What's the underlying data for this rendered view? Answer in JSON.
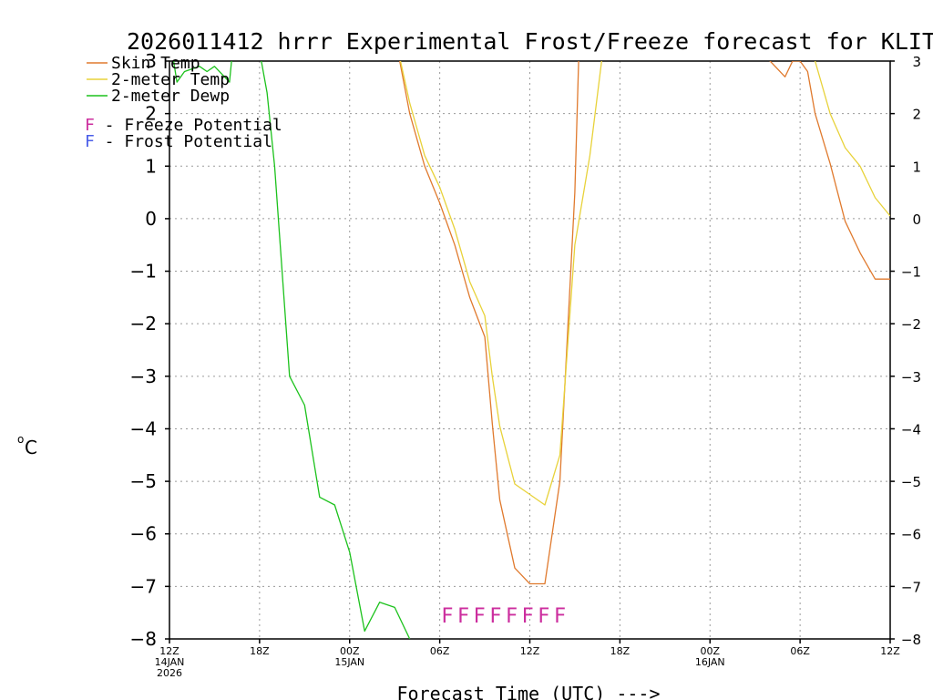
{
  "chart_data": {
    "type": "line",
    "title": "2026011412 hrrr Experimental Frost/Freeze forecast for KLIT",
    "xlabel": "Forecast Time (UTC) --->",
    "ylabel_superscript": "o",
    "ylabel_unit": "C",
    "ylim": [
      -8,
      3
    ],
    "xlim_hours": [
      0,
      48
    ],
    "y_ticks": [
      3,
      2,
      1,
      0,
      -1,
      -2,
      -3,
      -4,
      -5,
      -6,
      -7,
      -8
    ],
    "y_tick_labels_left": [
      "3",
      "2",
      "1",
      "0",
      "−1",
      "−2",
      "−3",
      "−4",
      "−5",
      "−6",
      "−7",
      "−8"
    ],
    "y_tick_labels_right": [
      "3",
      "2",
      "1",
      "0",
      "−1",
      "−2",
      "−3",
      "−4",
      "−5",
      "−6",
      "−7",
      "−8"
    ],
    "x_ticks": [
      {
        "hour": 0,
        "lines": [
          "12Z",
          "14JAN",
          "2026"
        ]
      },
      {
        "hour": 6,
        "lines": [
          "18Z"
        ]
      },
      {
        "hour": 12,
        "lines": [
          "00Z",
          "15JAN"
        ]
      },
      {
        "hour": 18,
        "lines": [
          "06Z"
        ]
      },
      {
        "hour": 24,
        "lines": [
          "12Z"
        ]
      },
      {
        "hour": 30,
        "lines": [
          "18Z"
        ]
      },
      {
        "hour": 36,
        "lines": [
          "00Z",
          "16JAN"
        ]
      },
      {
        "hour": 42,
        "lines": [
          "06Z"
        ]
      },
      {
        "hour": 48,
        "lines": [
          "12Z"
        ]
      }
    ],
    "legend": [
      {
        "label": "Skin Temp",
        "color": "#e07a2e"
      },
      {
        "label": "2-meter Temp",
        "color": "#e8d23a"
      },
      {
        "label": "2-meter Dewp",
        "color": "#1cc21c"
      }
    ],
    "potential_legend": [
      {
        "letter": "F",
        "text": " - Freeze Potential",
        "color": "#cc2e9e"
      },
      {
        "letter": "F",
        "text": " - Frost Potential",
        "color": "#4a5ee8"
      }
    ],
    "freeze_flags": {
      "letters": "FFFFFFFF",
      "color": "#cc2e9e",
      "start_hour": 18.5,
      "end_hour": 26.0,
      "y": -7.55
    },
    "series": [
      {
        "name": "Skin Temp",
        "color": "#e07a2e",
        "points": [
          [
            15.0,
            3.5
          ],
          [
            16.0,
            2.0
          ],
          [
            17.0,
            1.0
          ],
          [
            18.0,
            0.3
          ],
          [
            19.0,
            -0.5
          ],
          [
            20.0,
            -1.5
          ],
          [
            21.0,
            -2.25
          ],
          [
            21.5,
            -3.9
          ],
          [
            22.0,
            -5.35
          ],
          [
            23.0,
            -6.65
          ],
          [
            24.0,
            -6.95
          ],
          [
            25.0,
            -6.95
          ],
          [
            26.0,
            -5.0
          ],
          [
            27.0,
            0.5
          ],
          [
            27.3,
            3.5
          ]
        ]
      },
      {
        "name": "2-meter Temp",
        "color": "#e8d23a",
        "points": [
          [
            15.0,
            3.5
          ],
          [
            16.0,
            2.2
          ],
          [
            17.0,
            1.2
          ],
          [
            18.0,
            0.6
          ],
          [
            19.0,
            -0.2
          ],
          [
            20.0,
            -1.2
          ],
          [
            21.0,
            -1.85
          ],
          [
            21.5,
            -3.0
          ],
          [
            22.0,
            -3.95
          ],
          [
            23.0,
            -5.05
          ],
          [
            24.0,
            -5.25
          ],
          [
            25.0,
            -5.45
          ],
          [
            26.0,
            -4.5
          ],
          [
            27.0,
            -0.5
          ],
          [
            28.0,
            1.2
          ],
          [
            29.0,
            3.5
          ]
        ]
      },
      {
        "name": "2-meter Dewp",
        "color": "#1cc21c",
        "points": [
          [
            0.0,
            3.5
          ],
          [
            0.5,
            2.6
          ],
          [
            1.0,
            2.8
          ],
          [
            2.0,
            2.9
          ],
          [
            2.5,
            2.8
          ],
          [
            3.0,
            2.9
          ],
          [
            4.0,
            2.6
          ],
          [
            4.3,
            3.5
          ],
          [
            5.8,
            3.5
          ],
          [
            6.5,
            2.4
          ],
          [
            7.0,
            1.0
          ],
          [
            8.0,
            -3.0
          ],
          [
            9.0,
            -3.55
          ],
          [
            10.0,
            -5.3
          ],
          [
            11.0,
            -5.45
          ],
          [
            12.0,
            -6.35
          ],
          [
            13.0,
            -7.85
          ],
          [
            14.0,
            -7.3
          ],
          [
            15.0,
            -7.4
          ],
          [
            16.0,
            -8.0
          ]
        ]
      },
      {
        "name": "Skin Temp (day 2)",
        "color": "#e07a2e",
        "points": [
          [
            39.5,
            3.2
          ],
          [
            40.0,
            3.0
          ],
          [
            41.0,
            2.7
          ],
          [
            41.5,
            3.0
          ],
          [
            42.0,
            3.0
          ],
          [
            42.5,
            2.8
          ],
          [
            43.0,
            2.0
          ],
          [
            44.0,
            1.05
          ],
          [
            44.5,
            0.5
          ],
          [
            45.0,
            -0.05
          ],
          [
            46.0,
            -0.65
          ],
          [
            47.0,
            -1.15
          ],
          [
            48.0,
            -1.15
          ]
        ]
      },
      {
        "name": "2-meter Temp (day 2)",
        "color": "#e8d23a",
        "points": [
          [
            42.0,
            3.5
          ],
          [
            43.0,
            3.0
          ],
          [
            44.0,
            2.0
          ],
          [
            45.0,
            1.35
          ],
          [
            46.0,
            1.0
          ],
          [
            47.0,
            0.4
          ],
          [
            48.0,
            0.05
          ]
        ]
      }
    ]
  }
}
